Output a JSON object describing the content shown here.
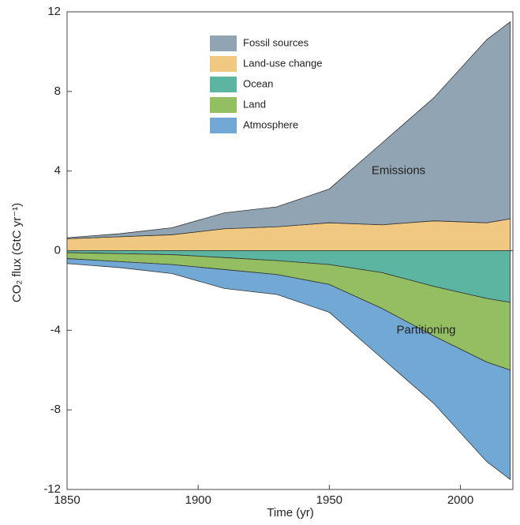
{
  "chart_data": {
    "type": "stacked-area",
    "ylabel": "CO₂ flux (GtC yr⁻¹)",
    "xlabel": "Time (yr)",
    "annotations": [
      "Emissions",
      "Partitioning"
    ],
    "x": [
      1850,
      1870,
      1890,
      1910,
      1930,
      1950,
      1970,
      1990,
      2010,
      2019
    ],
    "series": [
      {
        "name": "Fossil sources",
        "color": "#91a4b3",
        "values": [
          0.05,
          0.15,
          0.35,
          0.8,
          1.0,
          1.7,
          4.1,
          6.2,
          9.2,
          9.9
        ]
      },
      {
        "name": "Land-use change",
        "color": "#f0c882",
        "values": [
          0.6,
          0.7,
          0.8,
          1.1,
          1.2,
          1.4,
          1.3,
          1.5,
          1.4,
          1.6
        ]
      },
      {
        "name": "Ocean",
        "color": "#5cb5a1",
        "values": [
          -0.1,
          -0.15,
          -0.2,
          -0.35,
          -0.5,
          -0.7,
          -1.1,
          -1.8,
          -2.4,
          -2.6
        ]
      },
      {
        "name": "Land",
        "color": "#93bf62",
        "values": [
          -0.3,
          -0.4,
          -0.5,
          -0.6,
          -0.7,
          -1.0,
          -1.8,
          -2.5,
          -3.2,
          -3.4
        ]
      },
      {
        "name": "Atmosphere",
        "color": "#72a8d4",
        "values": [
          -0.25,
          -0.3,
          -0.45,
          -0.95,
          -1.0,
          -1.4,
          -2.5,
          -3.4,
          -5.0,
          -5.5
        ]
      }
    ],
    "xlim": [
      1850,
      2020
    ],
    "xticks": [
      1850,
      1900,
      1950,
      2000
    ],
    "ylim": [
      -12,
      12
    ],
    "yticks": [
      -12,
      -8,
      -4,
      0,
      4,
      8,
      12
    ]
  }
}
